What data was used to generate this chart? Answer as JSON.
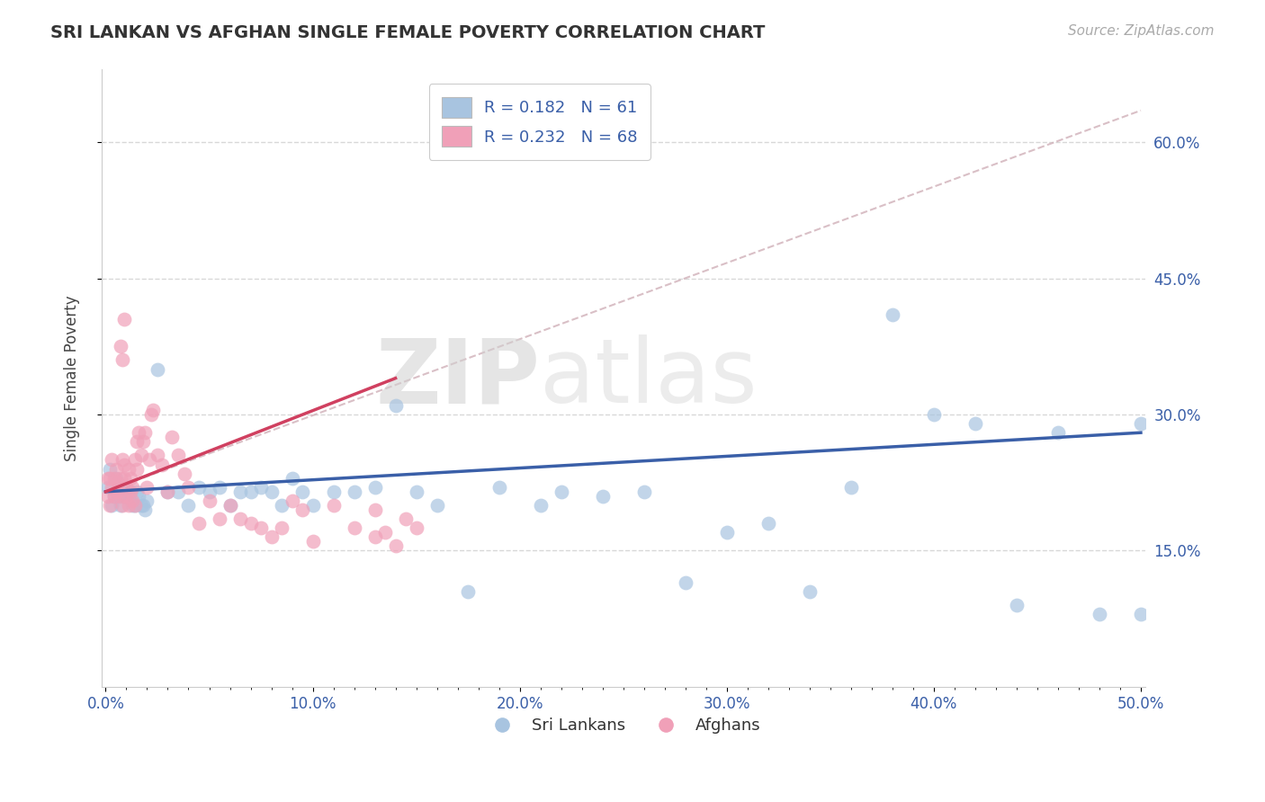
{
  "title": "SRI LANKAN VS AFGHAN SINGLE FEMALE POVERTY CORRELATION CHART",
  "source": "Source: ZipAtlas.com",
  "ylabel": "Single Female Poverty",
  "watermark": "ZIPatlas",
  "xlim": [
    -0.002,
    0.502
  ],
  "ylim": [
    0.0,
    0.68
  ],
  "xtick_labels": [
    "0.0%",
    "",
    "",
    "",
    "",
    "",
    "",
    "",
    "",
    "",
    "10.0%",
    "",
    "",
    "",
    "",
    "",
    "",
    "",
    "",
    "",
    "20.0%",
    "",
    "",
    "",
    "",
    "",
    "",
    "",
    "",
    "",
    "30.0%",
    "",
    "",
    "",
    "",
    "",
    "",
    "",
    "",
    "",
    "40.0%",
    "",
    "",
    "",
    "",
    "",
    "",
    "",
    "",
    "",
    "50.0%"
  ],
  "xtick_vals": [
    0.0,
    0.01,
    0.02,
    0.03,
    0.04,
    0.05,
    0.06,
    0.07,
    0.08,
    0.09,
    0.1,
    0.11,
    0.12,
    0.13,
    0.14,
    0.15,
    0.16,
    0.17,
    0.18,
    0.19,
    0.2,
    0.21,
    0.22,
    0.23,
    0.24,
    0.25,
    0.26,
    0.27,
    0.28,
    0.29,
    0.3,
    0.31,
    0.32,
    0.33,
    0.34,
    0.35,
    0.36,
    0.37,
    0.38,
    0.39,
    0.4,
    0.41,
    0.42,
    0.43,
    0.44,
    0.45,
    0.46,
    0.47,
    0.48,
    0.49,
    0.5
  ],
  "ytick_labels": [
    "15.0%",
    "30.0%",
    "45.0%",
    "60.0%"
  ],
  "ytick_vals": [
    0.15,
    0.3,
    0.45,
    0.6
  ],
  "sri_lankan_color": "#a8c4e0",
  "afghan_color": "#f0a0b8",
  "sri_lankan_line_color": "#3a5fa8",
  "afghan_line_color": "#d04060",
  "legend_sri_r": "0.182",
  "legend_sri_n": "61",
  "legend_afg_r": "0.232",
  "legend_afg_n": "68",
  "sri_lankans_label": "Sri Lankans",
  "afghans_label": "Afghans",
  "background_color": "#ffffff",
  "sri_x": [
    0.001,
    0.002,
    0.003,
    0.004,
    0.005,
    0.006,
    0.007,
    0.008,
    0.009,
    0.01,
    0.011,
    0.012,
    0.013,
    0.014,
    0.015,
    0.016,
    0.017,
    0.018,
    0.019,
    0.02,
    0.025,
    0.03,
    0.035,
    0.04,
    0.045,
    0.05,
    0.055,
    0.06,
    0.065,
    0.07,
    0.075,
    0.08,
    0.085,
    0.09,
    0.095,
    0.1,
    0.11,
    0.12,
    0.13,
    0.14,
    0.15,
    0.16,
    0.175,
    0.19,
    0.21,
    0.22,
    0.24,
    0.26,
    0.28,
    0.3,
    0.32,
    0.34,
    0.36,
    0.38,
    0.4,
    0.42,
    0.44,
    0.46,
    0.48,
    0.5,
    0.5
  ],
  "sri_y": [
    0.22,
    0.24,
    0.2,
    0.21,
    0.23,
    0.21,
    0.2,
    0.215,
    0.21,
    0.21,
    0.21,
    0.215,
    0.2,
    0.2,
    0.215,
    0.21,
    0.2,
    0.2,
    0.195,
    0.205,
    0.35,
    0.215,
    0.215,
    0.2,
    0.22,
    0.215,
    0.22,
    0.2,
    0.215,
    0.215,
    0.22,
    0.215,
    0.2,
    0.23,
    0.215,
    0.2,
    0.215,
    0.215,
    0.22,
    0.31,
    0.215,
    0.2,
    0.105,
    0.22,
    0.2,
    0.215,
    0.21,
    0.215,
    0.115,
    0.17,
    0.18,
    0.105,
    0.22,
    0.41,
    0.3,
    0.29,
    0.09,
    0.28,
    0.08,
    0.29,
    0.08
  ],
  "afg_x": [
    0.001,
    0.001,
    0.002,
    0.002,
    0.003,
    0.003,
    0.004,
    0.004,
    0.005,
    0.005,
    0.006,
    0.006,
    0.007,
    0.007,
    0.008,
    0.008,
    0.009,
    0.009,
    0.01,
    0.01,
    0.011,
    0.011,
    0.012,
    0.012,
    0.013,
    0.013,
    0.014,
    0.014,
    0.015,
    0.015,
    0.016,
    0.017,
    0.018,
    0.019,
    0.02,
    0.021,
    0.022,
    0.023,
    0.025,
    0.027,
    0.03,
    0.032,
    0.035,
    0.038,
    0.04,
    0.045,
    0.05,
    0.055,
    0.06,
    0.065,
    0.07,
    0.075,
    0.08,
    0.085,
    0.09,
    0.095,
    0.1,
    0.11,
    0.12,
    0.13,
    0.13,
    0.135,
    0.14,
    0.145,
    0.15,
    0.007,
    0.008,
    0.009
  ],
  "afg_y": [
    0.21,
    0.23,
    0.23,
    0.2,
    0.22,
    0.25,
    0.21,
    0.23,
    0.24,
    0.215,
    0.225,
    0.215,
    0.21,
    0.23,
    0.25,
    0.2,
    0.245,
    0.23,
    0.21,
    0.22,
    0.2,
    0.24,
    0.23,
    0.215,
    0.22,
    0.205,
    0.2,
    0.25,
    0.27,
    0.24,
    0.28,
    0.255,
    0.27,
    0.28,
    0.22,
    0.25,
    0.3,
    0.305,
    0.255,
    0.245,
    0.215,
    0.275,
    0.255,
    0.235,
    0.22,
    0.18,
    0.205,
    0.185,
    0.2,
    0.185,
    0.18,
    0.175,
    0.165,
    0.175,
    0.205,
    0.195,
    0.16,
    0.2,
    0.175,
    0.195,
    0.165,
    0.17,
    0.155,
    0.185,
    0.175,
    0.375,
    0.36,
    0.405
  ],
  "sri_line_x0": 0.0,
  "sri_line_y0": 0.215,
  "sri_line_x1": 0.5,
  "sri_line_y1": 0.28,
  "afg_line_x0": 0.0,
  "afg_line_y0": 0.215,
  "afg_line_x1": 0.14,
  "afg_line_y1": 0.34,
  "dash_line_x0": 0.0,
  "dash_line_y0": 0.215,
  "dash_line_x1": 0.5,
  "dash_line_y1": 0.635
}
